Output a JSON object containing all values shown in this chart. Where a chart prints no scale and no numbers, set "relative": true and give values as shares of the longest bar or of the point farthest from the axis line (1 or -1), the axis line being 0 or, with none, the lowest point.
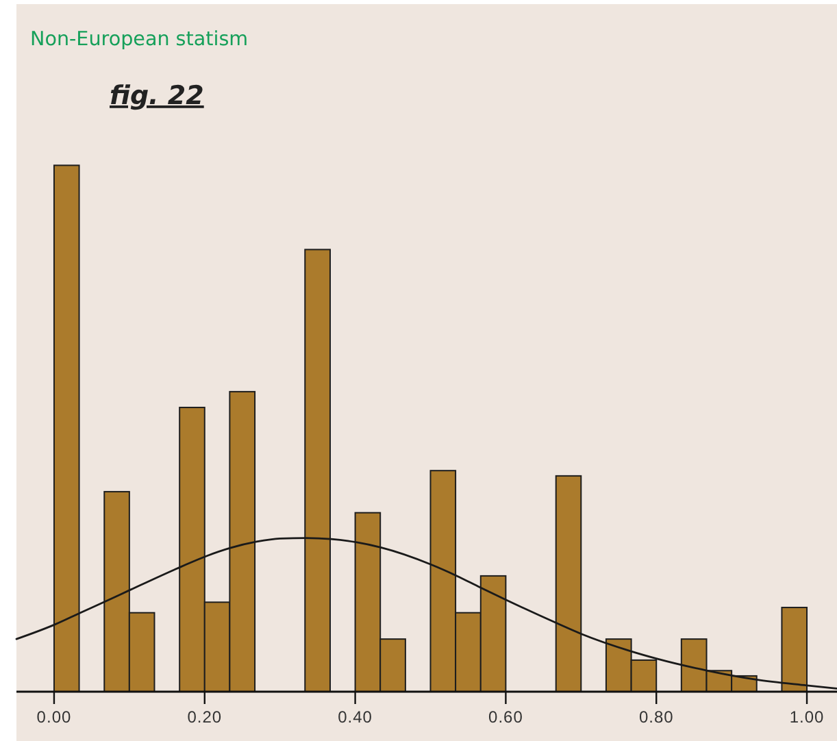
{
  "chart_data": {
    "type": "histogram",
    "title": "Non-European statism",
    "subtitle": "fig. 22",
    "relative": true,
    "bins": [
      0,
      0.0333,
      0.0667,
      0.1,
      0.1333,
      0.1667,
      0.2,
      0.2333,
      0.2667,
      0.3333,
      0.3667,
      0.4,
      0.4333,
      0.4667,
      0.5,
      0.5333,
      0.5667,
      0.6,
      0.6667,
      0.7,
      0.7333,
      0.7667,
      0.8,
      0.8333,
      0.8667,
      0.9,
      0.9333,
      0.9667,
      1
    ],
    "series": [
      {
        "color": "#ab7b2c",
        "values": [
          1,
          0,
          0.38,
          0.15,
          0,
          0.54,
          0.17,
          0.57,
          0,
          0.84,
          0,
          0.34,
          0.1,
          0,
          0.42,
          0.15,
          0.22,
          0,
          0.41,
          0,
          0.1,
          0.06,
          0,
          0.1,
          0.04,
          0.03,
          0,
          0.16
        ]
      },
      {
        "type": "line",
        "color": "#1a1a1a",
        "x": [
          -0.05,
          0,
          0.035,
          0.069,
          0.102,
          0.168,
          0.203,
          0.234,
          0.269,
          0.3,
          0.335,
          0.368,
          0.401,
          0.434,
          0.5,
          0.535,
          0.566,
          0.601,
          0.668,
          0.7,
          0.766,
          0.8,
          0.868,
          0.933,
          1.0,
          1.04
        ],
        "values": [
          0.1,
          0.127,
          0.15,
          0.172,
          0.194,
          0.237,
          0.258,
          0.273,
          0.285,
          0.291,
          0.292,
          0.29,
          0.284,
          0.274,
          0.242,
          0.22,
          0.198,
          0.174,
          0.13,
          0.11,
          0.077,
          0.063,
          0.04,
          0.023,
          0.012,
          0.006
        ]
      }
    ],
    "xlim": [
      -0.05,
      1.04
    ],
    "xticks": [
      {
        "value": 0,
        "label": "0.00"
      },
      {
        "value": 0.2,
        "label": "0.20"
      },
      {
        "value": 0.4,
        "label": "0.40"
      },
      {
        "value": 0.6,
        "label": "0.60"
      },
      {
        "value": 0.8,
        "label": "0.80"
      },
      {
        "value": 1,
        "label": "1.00"
      }
    ]
  }
}
